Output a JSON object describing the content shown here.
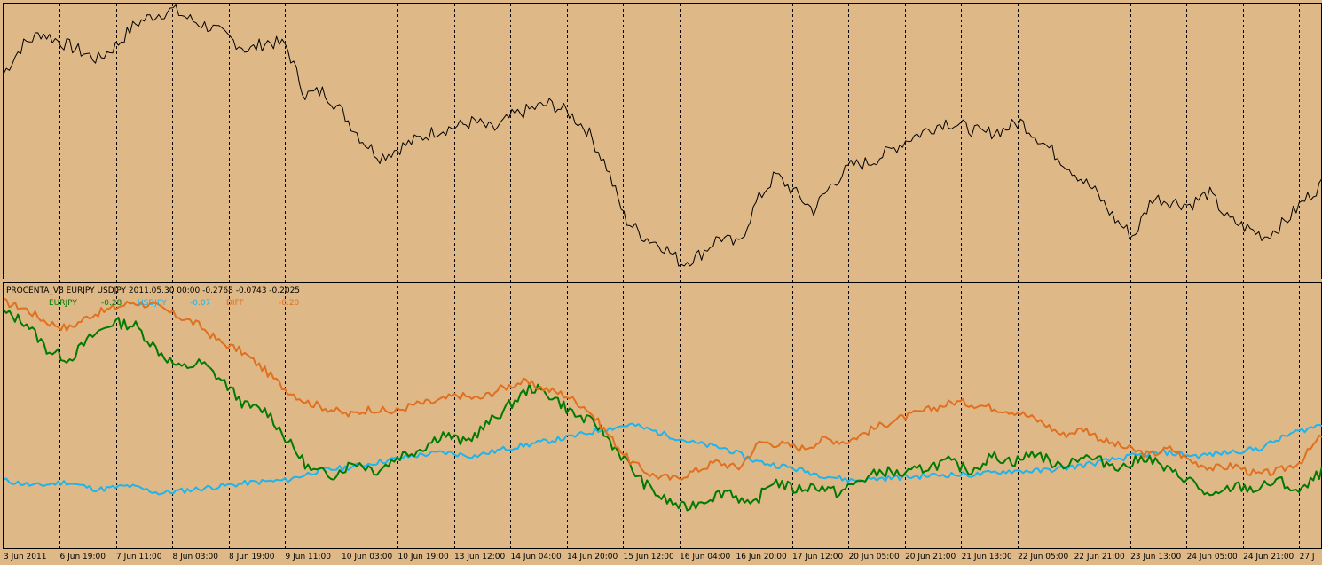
{
  "indicator": {
    "header": "PROCENTA_V8 EURJPY USDJPY 2011.05.30 00:00  -0.2768 -0.0743 -0.2025",
    "legend": [
      {
        "label": "EURJPY",
        "value": "-0.28",
        "color": "#007a00"
      },
      {
        "label": "USDJPY",
        "value": "-0.07",
        "color": "#1eb4ec"
      },
      {
        "label": "DIFF",
        "value": "-0.20",
        "color": "#e07020"
      }
    ]
  },
  "chart_data": {
    "type": "line",
    "x_tick_labels": [
      "3 Jun 2011",
      "6 Jun 19:00",
      "7 Jun 11:00",
      "8 Jun 03:00",
      "8 Jun 19:00",
      "9 Jun 11:00",
      "10 Jun 03:00",
      "10 Jun 19:00",
      "13 Jun 12:00",
      "14 Jun 04:00",
      "14 Jun 20:00",
      "15 Jun 12:00",
      "16 Jun 04:00",
      "16 Jun 20:00",
      "17 Jun 12:00",
      "20 Jun 05:00",
      "20 Jun 21:00",
      "21 Jun 13:00",
      "22 Jun 05:00",
      "22 Jun 21:00",
      "23 Jun 13:00",
      "24 Jun 05:00",
      "24 Jun 21:00",
      "27 J"
    ],
    "top_series": [
      0.62,
      0.78,
      0.85,
      0.8,
      0.75,
      0.7,
      0.78,
      0.9,
      0.95,
      0.98,
      0.92,
      0.88,
      0.82,
      0.75,
      0.8,
      0.78,
      0.5,
      0.52,
      0.4,
      0.25,
      0.15,
      0.2,
      0.25,
      0.3,
      0.32,
      0.35,
      0.3,
      0.38,
      0.42,
      0.45,
      0.4,
      0.3,
      0.1,
      -0.2,
      -0.3,
      -0.35,
      -0.45,
      -0.4,
      -0.3,
      -0.35,
      -0.1,
      0.05,
      -0.05,
      -0.15,
      0.0,
      0.1,
      0.12,
      0.18,
      0.25,
      0.3,
      0.35,
      0.32,
      0.28,
      0.3,
      0.35,
      0.25,
      0.15,
      0.05,
      -0.05,
      -0.2,
      -0.3,
      -0.08,
      -0.1,
      -0.12,
      -0.05,
      -0.2,
      -0.25,
      -0.3,
      -0.22,
      -0.1,
      0.0
    ],
    "eurjpy": [
      0.55,
      0.5,
      0.35,
      0.3,
      0.42,
      0.5,
      0.48,
      0.35,
      0.25,
      0.28,
      0.18,
      0.05,
      0.02,
      -0.15,
      -0.3,
      -0.32,
      -0.25,
      -0.3,
      -0.22,
      -0.18,
      -0.1,
      -0.15,
      -0.05,
      0.05,
      0.15,
      0.1,
      0.0,
      -0.05,
      -0.2,
      -0.35,
      -0.45,
      -0.5,
      -0.45,
      -0.4,
      -0.5,
      -0.35,
      -0.4,
      -0.38,
      -0.42,
      -0.35,
      -0.3,
      -0.32,
      -0.28,
      -0.25,
      -0.3,
      -0.22,
      -0.25,
      -0.2,
      -0.28,
      -0.22,
      -0.25,
      -0.28,
      -0.22,
      -0.3,
      -0.35,
      -0.45,
      -0.38,
      -0.4,
      -0.35,
      -0.42,
      -0.3
    ],
    "usdjpy": [
      -0.35,
      -0.38,
      -0.36,
      -0.4,
      -0.38,
      -0.42,
      -0.4,
      -0.38,
      -0.36,
      -0.35,
      -0.3,
      -0.28,
      -0.25,
      -0.22,
      -0.2,
      -0.22,
      -0.18,
      -0.15,
      -0.12,
      -0.08,
      -0.05,
      -0.1,
      -0.15,
      -0.18,
      -0.25,
      -0.28,
      -0.32,
      -0.35,
      -0.34,
      -0.33,
      -0.32,
      -0.32,
      -0.3,
      -0.3,
      -0.28,
      -0.25,
      -0.22,
      -0.2,
      -0.22,
      -0.2,
      -0.18,
      -0.1,
      -0.05
    ],
    "diff": [
      0.85,
      0.8,
      0.7,
      0.65,
      0.75,
      0.8,
      0.85,
      0.82,
      0.75,
      0.68,
      0.55,
      0.48,
      0.35,
      0.2,
      0.1,
      0.05,
      0.0,
      0.05,
      0.02,
      0.08,
      0.1,
      0.15,
      0.12,
      0.2,
      0.25,
      0.2,
      0.15,
      0.05,
      -0.15,
      -0.35,
      -0.45,
      -0.48,
      -0.42,
      -0.35,
      -0.4,
      -0.2,
      -0.22,
      -0.25,
      -0.18,
      -0.2,
      -0.12,
      -0.05,
      0.0,
      0.05,
      0.1,
      0.08,
      0.05,
      0.02,
      -0.05,
      -0.15,
      -0.1,
      -0.2,
      -0.25,
      -0.3,
      -0.25,
      -0.35,
      -0.4,
      -0.38,
      -0.45,
      -0.42,
      -0.35,
      -0.15
    ],
    "legend_position": "top-left",
    "grid": "vertical dashed separators"
  }
}
